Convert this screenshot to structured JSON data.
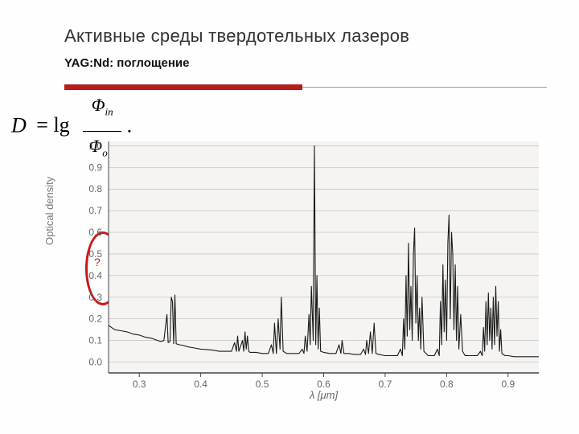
{
  "title": "Активные среды твердотельных лазеров",
  "subtitle": "YAG:Nd: поглощение",
  "formula": {
    "lhs": "D",
    "op": "= lg",
    "num": "Φ",
    "numsub": "in",
    "den": "Φ",
    "densub": "out",
    "dot": "."
  },
  "ylabel": "Optical density",
  "annotation": "?",
  "chart": {
    "type": "line",
    "background_color": "#f5f4f2",
    "grid_color": "#bfbfbf",
    "axis_color": "#444444",
    "tick_font_color": "#666666",
    "tick_fontsize": 12,
    "line_color": "#1a1a1a",
    "line_width": 1.1,
    "xlim": [
      0.25,
      0.95
    ],
    "ylim": [
      -0.05,
      1.02
    ],
    "xticks": [
      0.3,
      0.4,
      0.5,
      0.6,
      0.7,
      0.8,
      0.9
    ],
    "yticks": [
      0.0,
      0.1,
      0.2,
      0.3,
      0.4,
      0.5,
      0.6,
      0.7,
      0.8,
      0.9,
      1.0
    ],
    "xlabel": "λ  [μm]",
    "xlabel_fontsize": 13,
    "data": [
      [
        0.25,
        0.17
      ],
      [
        0.26,
        0.15
      ],
      [
        0.27,
        0.145
      ],
      [
        0.28,
        0.14
      ],
      [
        0.29,
        0.13
      ],
      [
        0.3,
        0.125
      ],
      [
        0.31,
        0.115
      ],
      [
        0.32,
        0.11
      ],
      [
        0.33,
        0.1
      ],
      [
        0.335,
        0.095
      ],
      [
        0.34,
        0.1
      ],
      [
        0.345,
        0.22
      ],
      [
        0.347,
        0.09
      ],
      [
        0.35,
        0.095
      ],
      [
        0.352,
        0.3
      ],
      [
        0.354,
        0.28
      ],
      [
        0.356,
        0.085
      ],
      [
        0.358,
        0.31
      ],
      [
        0.36,
        0.085
      ],
      [
        0.365,
        0.08
      ],
      [
        0.37,
        0.078
      ],
      [
        0.38,
        0.07
      ],
      [
        0.39,
        0.065
      ],
      [
        0.4,
        0.06
      ],
      [
        0.41,
        0.058
      ],
      [
        0.42,
        0.055
      ],
      [
        0.43,
        0.05
      ],
      [
        0.44,
        0.05
      ],
      [
        0.45,
        0.05
      ],
      [
        0.455,
        0.09
      ],
      [
        0.458,
        0.05
      ],
      [
        0.46,
        0.12
      ],
      [
        0.462,
        0.05
      ],
      [
        0.468,
        0.1
      ],
      [
        0.47,
        0.05
      ],
      [
        0.472,
        0.14
      ],
      [
        0.474,
        0.06
      ],
      [
        0.476,
        0.12
      ],
      [
        0.478,
        0.05
      ],
      [
        0.48,
        0.045
      ],
      [
        0.49,
        0.045
      ],
      [
        0.5,
        0.04
      ],
      [
        0.51,
        0.04
      ],
      [
        0.515,
        0.08
      ],
      [
        0.518,
        0.04
      ],
      [
        0.52,
        0.18
      ],
      [
        0.523,
        0.04
      ],
      [
        0.526,
        0.2
      ],
      [
        0.529,
        0.06
      ],
      [
        0.531,
        0.3
      ],
      [
        0.534,
        0.05
      ],
      [
        0.54,
        0.04
      ],
      [
        0.55,
        0.04
      ],
      [
        0.56,
        0.04
      ],
      [
        0.565,
        0.06
      ],
      [
        0.568,
        0.04
      ],
      [
        0.57,
        0.12
      ],
      [
        0.573,
        0.05
      ],
      [
        0.576,
        0.22
      ],
      [
        0.578,
        0.08
      ],
      [
        0.58,
        0.35
      ],
      [
        0.583,
        0.1
      ],
      [
        0.585,
        1.0
      ],
      [
        0.587,
        0.08
      ],
      [
        0.589,
        0.4
      ],
      [
        0.591,
        0.06
      ],
      [
        0.593,
        0.25
      ],
      [
        0.595,
        0.05
      ],
      [
        0.6,
        0.045
      ],
      [
        0.61,
        0.04
      ],
      [
        0.62,
        0.04
      ],
      [
        0.625,
        0.08
      ],
      [
        0.628,
        0.04
      ],
      [
        0.63,
        0.1
      ],
      [
        0.633,
        0.04
      ],
      [
        0.64,
        0.04
      ],
      [
        0.65,
        0.035
      ],
      [
        0.66,
        0.035
      ],
      [
        0.665,
        0.06
      ],
      [
        0.668,
        0.035
      ],
      [
        0.67,
        0.1
      ],
      [
        0.673,
        0.04
      ],
      [
        0.676,
        0.14
      ],
      [
        0.679,
        0.04
      ],
      [
        0.682,
        0.18
      ],
      [
        0.685,
        0.04
      ],
      [
        0.69,
        0.035
      ],
      [
        0.7,
        0.03
      ],
      [
        0.71,
        0.03
      ],
      [
        0.72,
        0.03
      ],
      [
        0.725,
        0.06
      ],
      [
        0.728,
        0.03
      ],
      [
        0.73,
        0.2
      ],
      [
        0.732,
        0.06
      ],
      [
        0.734,
        0.4
      ],
      [
        0.736,
        0.12
      ],
      [
        0.738,
        0.55
      ],
      [
        0.74,
        0.15
      ],
      [
        0.742,
        0.35
      ],
      [
        0.744,
        0.1
      ],
      [
        0.746,
        0.5
      ],
      [
        0.748,
        0.62
      ],
      [
        0.75,
        0.18
      ],
      [
        0.752,
        0.4
      ],
      [
        0.754,
        0.1
      ],
      [
        0.756,
        0.25
      ],
      [
        0.758,
        0.06
      ],
      [
        0.76,
        0.3
      ],
      [
        0.763,
        0.05
      ],
      [
        0.77,
        0.03
      ],
      [
        0.78,
        0.03
      ],
      [
        0.785,
        0.06
      ],
      [
        0.788,
        0.03
      ],
      [
        0.79,
        0.28
      ],
      [
        0.792,
        0.08
      ],
      [
        0.794,
        0.45
      ],
      [
        0.796,
        0.14
      ],
      [
        0.798,
        0.38
      ],
      [
        0.8,
        0.1
      ],
      [
        0.802,
        0.55
      ],
      [
        0.804,
        0.68
      ],
      [
        0.806,
        0.2
      ],
      [
        0.808,
        0.6
      ],
      [
        0.81,
        0.5
      ],
      [
        0.812,
        0.15
      ],
      [
        0.814,
        0.45
      ],
      [
        0.816,
        0.1
      ],
      [
        0.818,
        0.35
      ],
      [
        0.82,
        0.06
      ],
      [
        0.823,
        0.22
      ],
      [
        0.826,
        0.05
      ],
      [
        0.83,
        0.03
      ],
      [
        0.84,
        0.03
      ],
      [
        0.85,
        0.03
      ],
      [
        0.855,
        0.05
      ],
      [
        0.858,
        0.03
      ],
      [
        0.86,
        0.16
      ],
      [
        0.862,
        0.05
      ],
      [
        0.864,
        0.28
      ],
      [
        0.866,
        0.08
      ],
      [
        0.868,
        0.32
      ],
      [
        0.87,
        0.1
      ],
      [
        0.872,
        0.25
      ],
      [
        0.874,
        0.06
      ],
      [
        0.876,
        0.3
      ],
      [
        0.878,
        0.08
      ],
      [
        0.88,
        0.35
      ],
      [
        0.882,
        0.12
      ],
      [
        0.884,
        0.28
      ],
      [
        0.886,
        0.05
      ],
      [
        0.888,
        0.15
      ],
      [
        0.89,
        0.04
      ],
      [
        0.895,
        0.03
      ],
      [
        0.9,
        0.03
      ],
      [
        0.91,
        0.025
      ],
      [
        0.92,
        0.025
      ],
      [
        0.93,
        0.025
      ],
      [
        0.94,
        0.025
      ],
      [
        0.95,
        0.025
      ]
    ]
  }
}
